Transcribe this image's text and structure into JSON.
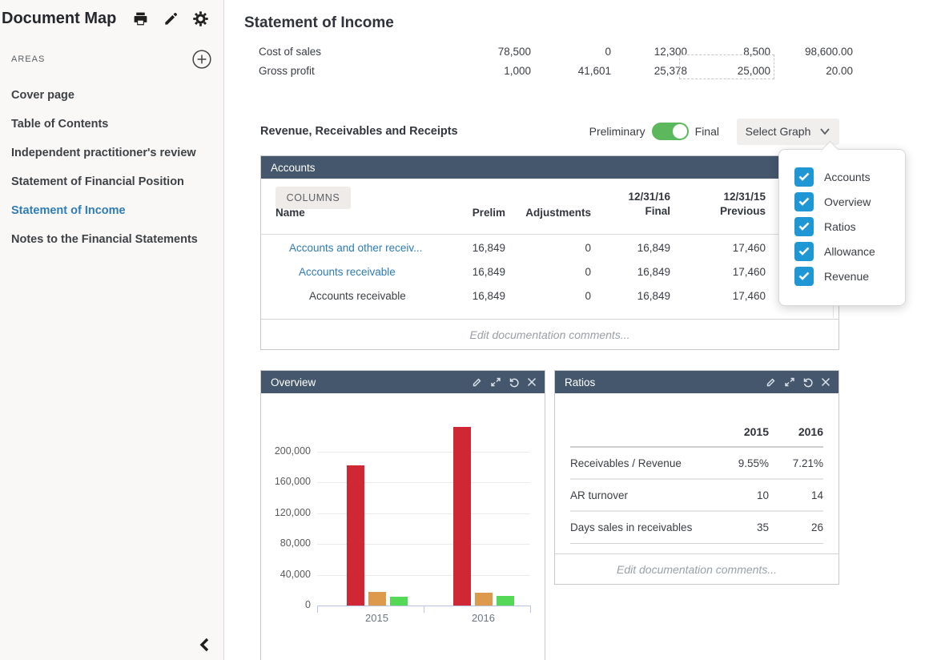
{
  "sidebar": {
    "title": "Document Map",
    "areas_label": "AREAS",
    "items": [
      {
        "label": "Cover page",
        "active": false
      },
      {
        "label": "Table of Contents",
        "active": false
      },
      {
        "label": "Independent practitioner's review",
        "active": false
      },
      {
        "label": "Statement of Financial Position",
        "active": false
      },
      {
        "label": "Statement of Income",
        "active": true
      },
      {
        "label": "Notes to the Financial Statements",
        "active": false
      }
    ]
  },
  "main": {
    "title": "Statement of Income",
    "income_table": {
      "rows": [
        {
          "label": "Cost of sales",
          "values": [
            "78,500",
            "0",
            "12,300",
            "8,500",
            "98,600.00"
          ]
        },
        {
          "label": "Gross profit",
          "values": [
            "1,000",
            "41,601",
            "25,378",
            "25,000",
            "20.00"
          ]
        }
      ]
    },
    "section": {
      "title": "Revenue, Receivables and Receipts",
      "toggle": {
        "left_label": "Preliminary",
        "right_label": "Final",
        "state": "Final",
        "color": "#5cb85c"
      },
      "select_graph_label": "Select Graph"
    },
    "graph_menu": {
      "checkbox_color": "#1e97d4",
      "items": [
        {
          "label": "Accounts",
          "checked": true
        },
        {
          "label": "Overview",
          "checked": true
        },
        {
          "label": "Ratios",
          "checked": true
        },
        {
          "label": "Allowance",
          "checked": true
        },
        {
          "label": "Revenue",
          "checked": true
        }
      ]
    },
    "accounts_panel": {
      "title": "Accounts",
      "columns_button": "COLUMNS",
      "headers": {
        "name": "Name",
        "prelim": "Prelim",
        "adjustments": "Adjustments",
        "final_top": "12/31/16",
        "final": "Final",
        "previous_top": "12/31/15",
        "previous": "Previous"
      },
      "rows": [
        {
          "name": "Accounts and other receiv...",
          "prelim": "16,849",
          "adjustments": "0",
          "final": "16,849",
          "previous": "17,460"
        },
        {
          "name": "Accounts receivable",
          "prelim": "16,849",
          "adjustments": "0",
          "final": "16,849",
          "previous": "17,460"
        },
        {
          "name": "Accounts receivable",
          "prelim": "16,849",
          "adjustments": "0",
          "final": "16,849",
          "previous": "17,460"
        }
      ],
      "comments_placeholder": "Edit documentation comments..."
    },
    "overview_panel": {
      "title": "Overview",
      "footer_columns": [
        "2015",
        "2016"
      ]
    },
    "ratios_panel": {
      "title": "Ratios",
      "columns": [
        "2015",
        "2016"
      ],
      "rows": [
        {
          "label": "Receivables / Revenue",
          "v2015": "9.55%",
          "v2016": "7.21%"
        },
        {
          "label": "AR turnover",
          "v2015": "10",
          "v2016": "14"
        },
        {
          "label": "Days sales in receivables",
          "v2015": "35",
          "v2016": "26"
        }
      ],
      "comments_placeholder": "Edit documentation comments..."
    }
  },
  "chart_data": {
    "type": "bar",
    "title": "Overview",
    "categories": [
      "2015",
      "2016"
    ],
    "series": [
      {
        "name": "revenue-red",
        "color": "#cf2733",
        "values": [
          182000,
          232000
        ]
      },
      {
        "name": "receivables-orange",
        "color": "#dd9a4d",
        "values": [
          17460,
          16849
        ]
      },
      {
        "name": "receipts-green",
        "color": "#55d855",
        "values": [
          11000,
          12000
        ]
      }
    ],
    "ylim": [
      0,
      240000
    ],
    "yticks": [
      0,
      40000,
      80000,
      120000,
      160000,
      200000
    ],
    "ytick_labels": [
      "0",
      "40,000",
      "80,000",
      "120,000",
      "160,000",
      "200,000"
    ],
    "grid": true,
    "legend": "none"
  },
  "colors": {
    "panel_header": "#45576d",
    "link_blue": "#2e7cb8",
    "checkbox_blue": "#1e97d4",
    "toggle_green": "#5cb85c",
    "bar_red": "#cf2733",
    "bar_orange": "#dd9a4d",
    "bar_green": "#55d855"
  }
}
